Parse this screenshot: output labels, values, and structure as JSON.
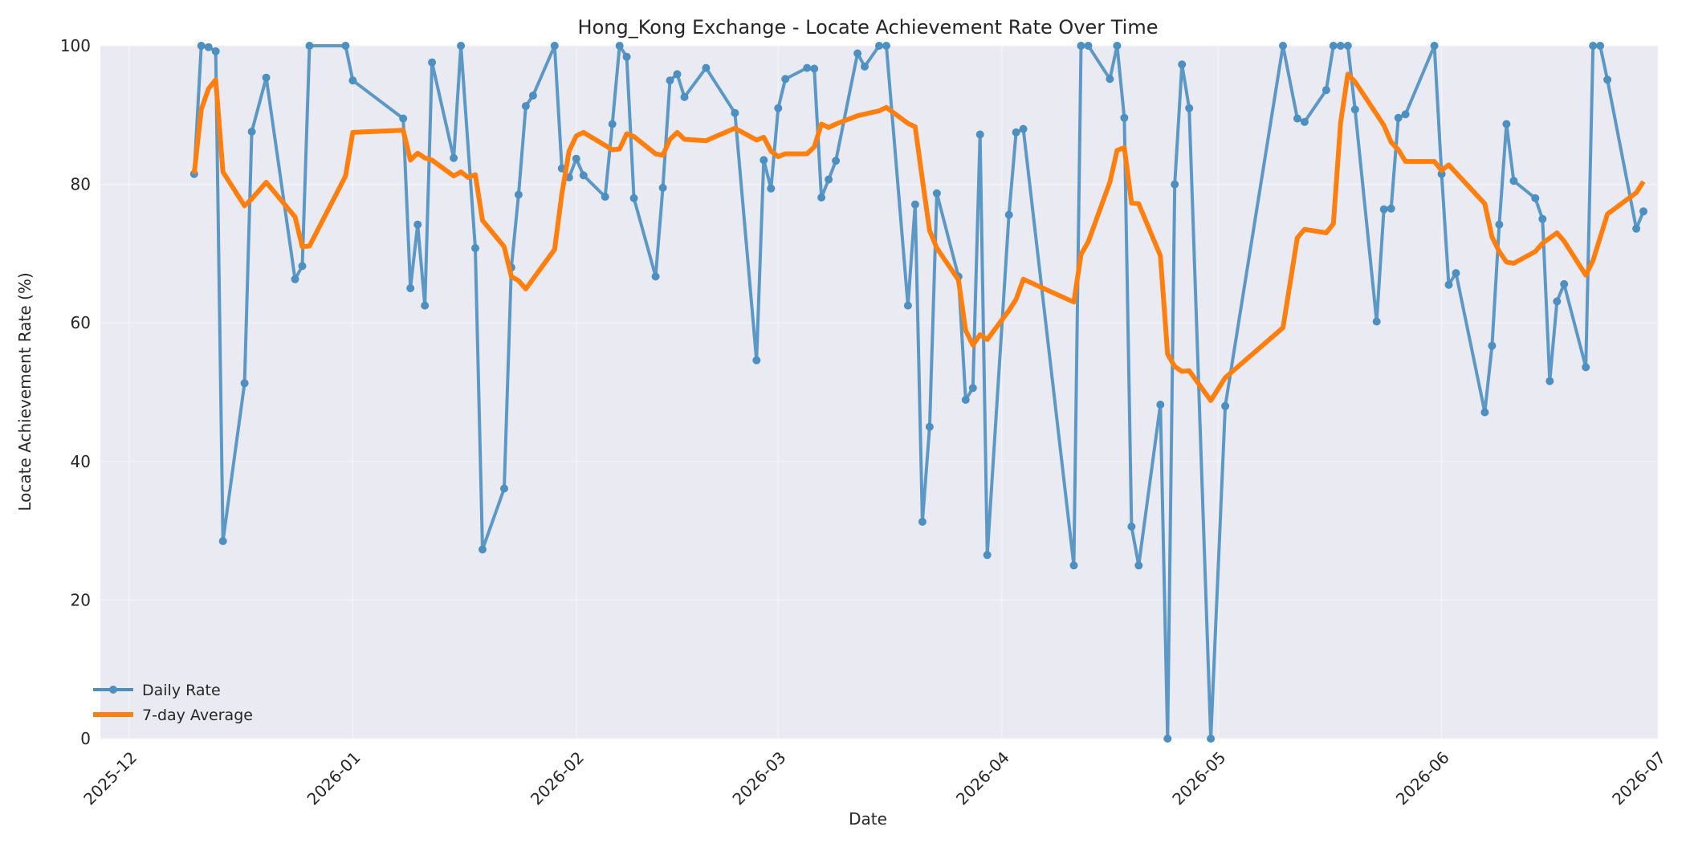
{
  "chart_data": {
    "type": "line",
    "title": "Hong_Kong Exchange - Locate Achievement Rate Over Time",
    "xlabel": "Date",
    "ylabel": "Locate Achievement Rate (%)",
    "xlim": [
      "2025-11-27",
      "2026-07-01"
    ],
    "ylim": [
      0,
      100
    ],
    "x_ticks": [
      "2025-12",
      "2026-01",
      "2026-02",
      "2026-03",
      "2026-04",
      "2026-05",
      "2026-06",
      "2026-07"
    ],
    "y_ticks": [
      0,
      20,
      40,
      60,
      80,
      100
    ],
    "grid": true,
    "legend_position": "lower-left",
    "colors": {
      "daily": "#4c8fc1",
      "average": "#ff7f0e",
      "plot_bg": "#eaeaf2",
      "grid": "#f5f5f8"
    },
    "series": [
      {
        "name": "Daily Rate",
        "marker": "circle",
        "points": [
          [
            "2025-12-10",
            81.5
          ],
          [
            "2025-12-11",
            100
          ],
          [
            "2025-12-12",
            99.8
          ],
          [
            "2025-12-13",
            99.2
          ],
          [
            "2025-12-14",
            28.5
          ],
          [
            "2025-12-17",
            51.3
          ],
          [
            "2025-12-18",
            87.6
          ],
          [
            "2025-12-20",
            95.4
          ],
          [
            "2025-12-24",
            66.3
          ],
          [
            "2025-12-25",
            68.2
          ],
          [
            "2025-12-26",
            100
          ],
          [
            "2025-12-31",
            100
          ],
          [
            "2026-01-01",
            95.0
          ],
          [
            "2026-01-08",
            89.5
          ],
          [
            "2026-01-09",
            65.0
          ],
          [
            "2026-01-10",
            74.2
          ],
          [
            "2026-01-11",
            62.5
          ],
          [
            "2026-01-12",
            97.6
          ],
          [
            "2026-01-15",
            83.8
          ],
          [
            "2026-01-16",
            100
          ],
          [
            "2026-01-18",
            70.8
          ],
          [
            "2026-01-19",
            27.3
          ],
          [
            "2026-01-22",
            36.1
          ],
          [
            "2026-01-23",
            68.0
          ],
          [
            "2026-01-24",
            78.5
          ],
          [
            "2026-01-25",
            91.3
          ],
          [
            "2026-01-26",
            92.8
          ],
          [
            "2026-01-29",
            100
          ],
          [
            "2026-01-30",
            82.3
          ],
          [
            "2026-01-31",
            81.0
          ],
          [
            "2026-02-01",
            83.7
          ],
          [
            "2026-02-02",
            81.3
          ],
          [
            "2026-02-05",
            78.2
          ],
          [
            "2026-02-06",
            88.7
          ],
          [
            "2026-02-07",
            100
          ],
          [
            "2026-02-08",
            98.4
          ],
          [
            "2026-02-09",
            78.0
          ],
          [
            "2026-02-12",
            66.7
          ],
          [
            "2026-02-13",
            79.5
          ],
          [
            "2026-02-14",
            95.0
          ],
          [
            "2026-02-15",
            95.9
          ],
          [
            "2026-02-16",
            92.6
          ],
          [
            "2026-02-19",
            96.8
          ],
          [
            "2026-02-23",
            90.3
          ],
          [
            "2026-02-26",
            54.6
          ],
          [
            "2026-02-27",
            83.5
          ],
          [
            "2026-02-28",
            79.4
          ],
          [
            "2026-03-01",
            91.0
          ],
          [
            "2026-03-02",
            95.2
          ],
          [
            "2026-03-05",
            96.8
          ],
          [
            "2026-03-06",
            96.7
          ],
          [
            "2026-03-07",
            78.1
          ],
          [
            "2026-03-08",
            80.7
          ],
          [
            "2026-03-09",
            83.4
          ],
          [
            "2026-03-12",
            98.9
          ],
          [
            "2026-03-13",
            97.0
          ],
          [
            "2026-03-15",
            100
          ],
          [
            "2026-03-16",
            100
          ],
          [
            "2026-03-19",
            62.5
          ],
          [
            "2026-03-20",
            77.1
          ],
          [
            "2026-03-21",
            31.3
          ],
          [
            "2026-03-22",
            45.0
          ],
          [
            "2026-03-23",
            78.7
          ],
          [
            "2026-03-26",
            66.7
          ],
          [
            "2026-03-27",
            48.9
          ],
          [
            "2026-03-28",
            50.6
          ],
          [
            "2026-03-29",
            87.2
          ],
          [
            "2026-03-30",
            26.5
          ],
          [
            "2026-04-02",
            75.6
          ],
          [
            "2026-04-03",
            87.5
          ],
          [
            "2026-04-04",
            88.0
          ],
          [
            "2026-04-11",
            25.0
          ],
          [
            "2026-04-12",
            100
          ],
          [
            "2026-04-13",
            100
          ],
          [
            "2026-04-16",
            95.2
          ],
          [
            "2026-04-17",
            100
          ],
          [
            "2026-04-18",
            89.6
          ],
          [
            "2026-04-19",
            30.6
          ],
          [
            "2026-04-20",
            25.0
          ],
          [
            "2026-04-23",
            48.2
          ],
          [
            "2026-04-24",
            0
          ],
          [
            "2026-04-25",
            80.0
          ],
          [
            "2026-04-26",
            97.3
          ],
          [
            "2026-04-27",
            91.0
          ],
          [
            "2026-04-30",
            0
          ],
          [
            "2026-05-02",
            48.0
          ],
          [
            "2026-05-10",
            100
          ],
          [
            "2026-05-12",
            89.5
          ],
          [
            "2026-05-13",
            89.0
          ],
          [
            "2026-05-16",
            93.6
          ],
          [
            "2026-05-17",
            100
          ],
          [
            "2026-05-18",
            100
          ],
          [
            "2026-05-19",
            100
          ],
          [
            "2026-05-20",
            90.8
          ],
          [
            "2026-05-23",
            60.2
          ],
          [
            "2026-05-24",
            76.4
          ],
          [
            "2026-05-25",
            76.5
          ],
          [
            "2026-05-26",
            89.6
          ],
          [
            "2026-05-27",
            90.1
          ],
          [
            "2026-05-31",
            100
          ],
          [
            "2026-06-01",
            81.5
          ],
          [
            "2026-06-02",
            65.5
          ],
          [
            "2026-06-03",
            67.2
          ],
          [
            "2026-06-07",
            47.1
          ],
          [
            "2026-06-08",
            56.7
          ],
          [
            "2026-06-09",
            74.2
          ],
          [
            "2026-06-10",
            88.7
          ],
          [
            "2026-06-11",
            80.5
          ],
          [
            "2026-06-14",
            78.0
          ],
          [
            "2026-06-15",
            75.0
          ],
          [
            "2026-06-16",
            51.6
          ],
          [
            "2026-06-17",
            63.1
          ],
          [
            "2026-06-18",
            65.6
          ],
          [
            "2026-06-21",
            53.6
          ],
          [
            "2026-06-22",
            100
          ],
          [
            "2026-06-23",
            100
          ],
          [
            "2026-06-24",
            95.1
          ],
          [
            "2026-06-28",
            73.6
          ],
          [
            "2026-06-29",
            76.1
          ]
        ]
      },
      {
        "name": "7-day Average",
        "points": [
          [
            "2025-12-10",
            81.5
          ],
          [
            "2025-12-11",
            90.8
          ],
          [
            "2025-12-12",
            93.8
          ],
          [
            "2025-12-13",
            95.1
          ],
          [
            "2025-12-14",
            81.8
          ],
          [
            "2025-12-17",
            76.9
          ],
          [
            "2025-12-18",
            77.9
          ],
          [
            "2025-12-20",
            80.3
          ],
          [
            "2025-12-24",
            75.3
          ],
          [
            "2025-12-25",
            71.0
          ],
          [
            "2025-12-26",
            71.1
          ],
          [
            "2025-12-31",
            81.2
          ],
          [
            "2026-01-01",
            87.5
          ],
          [
            "2026-01-08",
            87.8
          ],
          [
            "2026-01-09",
            83.5
          ],
          [
            "2026-01-10",
            84.5
          ],
          [
            "2026-01-11",
            83.8
          ],
          [
            "2026-01-12",
            83.5
          ],
          [
            "2026-01-15",
            81.2
          ],
          [
            "2026-01-16",
            81.8
          ],
          [
            "2026-01-17",
            81.0
          ],
          [
            "2026-01-18",
            81.4
          ],
          [
            "2026-01-19",
            74.8
          ],
          [
            "2026-01-22",
            71.0
          ],
          [
            "2026-01-23",
            66.7
          ],
          [
            "2026-01-24",
            66.1
          ],
          [
            "2026-01-25",
            64.9
          ],
          [
            "2026-01-29",
            70.6
          ],
          [
            "2026-01-30",
            78.6
          ],
          [
            "2026-01-31",
            84.8
          ],
          [
            "2026-02-01",
            87.0
          ],
          [
            "2026-02-02",
            87.5
          ],
          [
            "2026-02-06",
            85.0
          ],
          [
            "2026-02-07",
            85.1
          ],
          [
            "2026-02-08",
            87.3
          ],
          [
            "2026-02-09",
            86.9
          ],
          [
            "2026-02-12",
            84.4
          ],
          [
            "2026-02-13",
            84.2
          ],
          [
            "2026-02-14",
            86.5
          ],
          [
            "2026-02-15",
            87.5
          ],
          [
            "2026-02-16",
            86.5
          ],
          [
            "2026-02-19",
            86.3
          ],
          [
            "2026-02-23",
            88.1
          ],
          [
            "2026-02-26",
            86.4
          ],
          [
            "2026-02-27",
            86.8
          ],
          [
            "2026-02-28",
            84.8
          ],
          [
            "2026-03-01",
            84.0
          ],
          [
            "2026-03-02",
            84.4
          ],
          [
            "2026-03-05",
            84.4
          ],
          [
            "2026-03-06",
            85.4
          ],
          [
            "2026-03-07",
            88.7
          ],
          [
            "2026-03-08",
            88.2
          ],
          [
            "2026-03-09",
            88.7
          ],
          [
            "2026-03-12",
            89.9
          ],
          [
            "2026-03-15",
            90.6
          ],
          [
            "2026-03-16",
            91.1
          ],
          [
            "2026-03-19",
            88.8
          ],
          [
            "2026-03-20",
            88.3
          ],
          [
            "2026-03-21",
            80.7
          ],
          [
            "2026-03-22",
            73.3
          ],
          [
            "2026-03-23",
            70.8
          ],
          [
            "2026-03-26",
            66.2
          ],
          [
            "2026-03-27",
            58.9
          ],
          [
            "2026-03-28",
            56.8
          ],
          [
            "2026-03-29",
            58.3
          ],
          [
            "2026-03-30",
            57.6
          ],
          [
            "2026-04-02",
            61.8
          ],
          [
            "2026-04-03",
            63.4
          ],
          [
            "2026-04-04",
            66.3
          ],
          [
            "2026-04-11",
            63.0
          ],
          [
            "2026-04-12",
            69.9
          ],
          [
            "2026-04-13",
            71.7
          ],
          [
            "2026-04-16",
            80.3
          ],
          [
            "2026-04-17",
            84.9
          ],
          [
            "2026-04-18",
            85.3
          ],
          [
            "2026-04-19",
            77.3
          ],
          [
            "2026-04-20",
            77.2
          ],
          [
            "2026-04-23",
            69.7
          ],
          [
            "2026-04-24",
            55.5
          ],
          [
            "2026-04-25",
            53.7
          ],
          [
            "2026-04-26",
            53.0
          ],
          [
            "2026-04-27",
            53.1
          ],
          [
            "2026-04-30",
            48.8
          ],
          [
            "2026-05-02",
            52.1
          ],
          [
            "2026-05-10",
            59.3
          ],
          [
            "2026-05-12",
            72.3
          ],
          [
            "2026-05-13",
            73.5
          ],
          [
            "2026-05-16",
            73.0
          ],
          [
            "2026-05-17",
            74.3
          ],
          [
            "2026-05-18",
            88.9
          ],
          [
            "2026-05-19",
            95.9
          ],
          [
            "2026-05-20",
            94.8
          ],
          [
            "2026-05-23",
            90.1
          ],
          [
            "2026-05-24",
            88.5
          ],
          [
            "2026-05-25",
            86.1
          ],
          [
            "2026-05-26",
            85.0
          ],
          [
            "2026-05-27",
            83.3
          ],
          [
            "2026-05-31",
            83.3
          ],
          [
            "2026-06-01",
            82.0
          ],
          [
            "2026-06-02",
            82.8
          ],
          [
            "2026-06-07",
            77.2
          ],
          [
            "2026-06-08",
            72.4
          ],
          [
            "2026-06-09",
            70.3
          ],
          [
            "2026-06-10",
            68.8
          ],
          [
            "2026-06-11",
            68.6
          ],
          [
            "2026-06-14",
            70.3
          ],
          [
            "2026-06-15",
            71.5
          ],
          [
            "2026-06-17",
            73.0
          ],
          [
            "2026-06-18",
            71.8
          ],
          [
            "2026-06-21",
            66.9
          ],
          [
            "2026-06-22",
            69.0
          ],
          [
            "2026-06-24",
            75.7
          ],
          [
            "2026-06-28",
            78.8
          ],
          [
            "2026-06-29",
            80.4
          ]
        ]
      }
    ]
  }
}
